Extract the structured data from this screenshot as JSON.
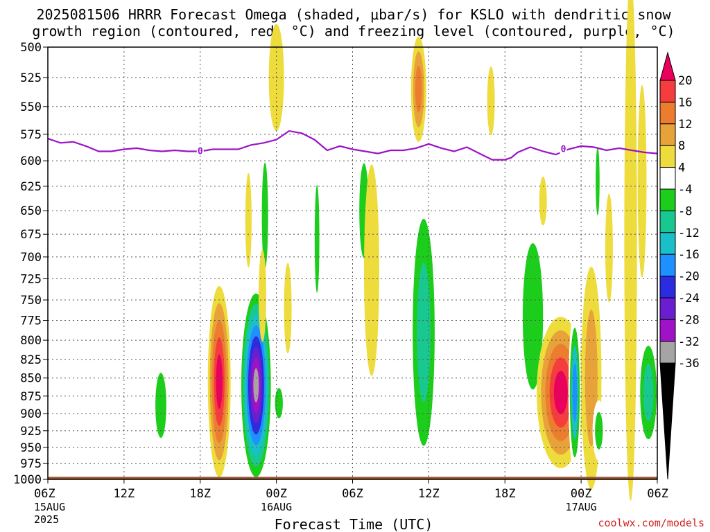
{
  "chart_data": {
    "type": "heatmap",
    "title_line1": "2025081506 HRRR Forecast Omega (shaded, μbar/s) for KSLO with dendritic snow",
    "title_line2": "growth region (contoured, red, °C) and freezing level (contoured, purple, °C)",
    "xlabel": "Forecast Time (UTC)",
    "x_ticks": [
      {
        "hour": 0,
        "label": "06Z",
        "date": "15AUG",
        "year": "2025"
      },
      {
        "hour": 6,
        "label": "12Z"
      },
      {
        "hour": 12,
        "label": "18Z"
      },
      {
        "hour": 18,
        "label": "00Z",
        "date": "16AUG"
      },
      {
        "hour": 24,
        "label": "06Z"
      },
      {
        "hour": 30,
        "label": "12Z"
      },
      {
        "hour": 36,
        "label": "18Z"
      },
      {
        "hour": 42,
        "label": "00Z",
        "date": "17AUG"
      },
      {
        "hour": 48,
        "label": "06Z"
      }
    ],
    "xlim": [
      0,
      48
    ],
    "ylim": [
      1000,
      500
    ],
    "y_ticks": [
      500,
      525,
      550,
      575,
      600,
      625,
      650,
      675,
      700,
      725,
      750,
      775,
      800,
      825,
      850,
      875,
      900,
      925,
      950,
      975,
      1000
    ],
    "grid": true,
    "colorbar": {
      "labels": [
        "20",
        "16",
        "12",
        "8",
        "4",
        "-4",
        "-8",
        "-12",
        "-16",
        "-20",
        "-24",
        "-28",
        "-32",
        "-36"
      ],
      "levels": [
        {
          "min": 20,
          "color": "#e8005c"
        },
        {
          "min": 16,
          "color": "#f53d3d"
        },
        {
          "min": 12,
          "color": "#ed7d2e"
        },
        {
          "min": 8,
          "color": "#e8a23a"
        },
        {
          "min": 4,
          "color": "#eddc3c"
        },
        {
          "min": -4,
          "color": "#ffffff"
        },
        {
          "min": -8,
          "color": "#1ccd1c"
        },
        {
          "min": -12,
          "color": "#19c890"
        },
        {
          "min": -16,
          "color": "#19bfc9"
        },
        {
          "min": -20,
          "color": "#1e90ff"
        },
        {
          "min": -24,
          "color": "#2b2bdf"
        },
        {
          "min": -28,
          "color": "#6a1ecf"
        },
        {
          "min": -32,
          "color": "#a012c8"
        },
        {
          "min": -36,
          "color": "#a5a5a5"
        },
        {
          "min": -999,
          "color": "#000000"
        }
      ]
    },
    "freezing_level": {
      "label": "0",
      "color": "#9a13c8",
      "points": [
        [
          0,
          579
        ],
        [
          1,
          583
        ],
        [
          2,
          582
        ],
        [
          3,
          586
        ],
        [
          4,
          591
        ],
        [
          5,
          591
        ],
        [
          6,
          589
        ],
        [
          7,
          588
        ],
        [
          8,
          590
        ],
        [
          9,
          591
        ],
        [
          10,
          590
        ],
        [
          11,
          591
        ],
        [
          12,
          591
        ],
        [
          13,
          589
        ],
        [
          14,
          589
        ],
        [
          15,
          589
        ],
        [
          16,
          585
        ],
        [
          17,
          583
        ],
        [
          18,
          580
        ],
        [
          19,
          572
        ],
        [
          20,
          574
        ],
        [
          21,
          580
        ],
        [
          22,
          590
        ],
        [
          23,
          586
        ],
        [
          24,
          589
        ],
        [
          25,
          591
        ],
        [
          26,
          593
        ],
        [
          27,
          590
        ],
        [
          28,
          590
        ],
        [
          29,
          588
        ],
        [
          30,
          584
        ],
        [
          31,
          588
        ],
        [
          32,
          591
        ],
        [
          33,
          587
        ],
        [
          34,
          593
        ],
        [
          35,
          599
        ],
        [
          36,
          599
        ],
        [
          36.5,
          597
        ],
        [
          37,
          592
        ],
        [
          38,
          587
        ],
        [
          39,
          591
        ],
        [
          40,
          594
        ],
        [
          41,
          589
        ],
        [
          42,
          586
        ],
        [
          43,
          587
        ],
        [
          44,
          590
        ],
        [
          45,
          588
        ],
        [
          46,
          590
        ],
        [
          47,
          592
        ],
        [
          48,
          593
        ]
      ]
    },
    "omega_features": [
      {
        "x": 8.9,
        "p": 888,
        "hw": 0.7,
        "hh": 75,
        "cores": [
          -4,
          -8
        ]
      },
      {
        "x": 13.5,
        "p": 855,
        "hw": 0.9,
        "hh": 130,
        "cores": [
          4,
          8,
          12,
          16,
          20
        ]
      },
      {
        "x": 16.4,
        "p": 860,
        "hw": 1.3,
        "hh": 140,
        "cores": [
          -4,
          -8,
          -12,
          -16,
          -20,
          -24,
          -28,
          -32,
          -36
        ]
      },
      {
        "x": 18.2,
        "p": 885,
        "hw": 0.5,
        "hh": 35,
        "cores": [
          -4,
          -8
        ]
      },
      {
        "x": 17.1,
        "p": 655,
        "hw": 0.4,
        "hh": 90,
        "cores": [
          -4,
          -8
        ]
      },
      {
        "x": 15.8,
        "p": 660,
        "hw": 0.25,
        "hh": 50,
        "cores": [
          4
        ]
      },
      {
        "x": 16.9,
        "p": 745,
        "hw": 0.3,
        "hh": 55,
        "cores": [
          4
        ]
      },
      {
        "x": 18.9,
        "p": 760,
        "hw": 0.3,
        "hh": 55,
        "cores": [
          4
        ]
      },
      {
        "x": 18.0,
        "p": 525,
        "hw": 0.6,
        "hh": 45,
        "cores": [
          4
        ]
      },
      {
        "x": 21.2,
        "p": 680,
        "hw": 0.3,
        "hh": 95,
        "cores": [
          -4,
          -8
        ]
      },
      {
        "x": 24.9,
        "p": 650,
        "hw": 0.6,
        "hh": 80,
        "cores": [
          -4,
          -8
        ]
      },
      {
        "x": 25.5,
        "p": 715,
        "hw": 0.6,
        "hh": 120,
        "cores": [
          4
        ]
      },
      {
        "x": 29.2,
        "p": 535,
        "hw": 0.6,
        "hh": 45,
        "cores": [
          4,
          8,
          12
        ]
      },
      {
        "x": 29.6,
        "p": 790,
        "hw": 1.2,
        "hh": 195,
        "cores": [
          -4,
          -8,
          -12
        ]
      },
      {
        "x": 38.2,
        "p": 770,
        "hw": 1.3,
        "hh": 145,
        "cores": [
          -4,
          -8
        ]
      },
      {
        "x": 40.4,
        "p": 870,
        "hw": 1.9,
        "hh": 105,
        "cores": [
          4,
          8,
          12,
          16,
          20
        ]
      },
      {
        "x": 41.5,
        "p": 870,
        "hw": 0.5,
        "hh": 115,
        "cores": [
          -4,
          -8,
          -16,
          -20
        ]
      },
      {
        "x": 42.8,
        "p": 850,
        "hw": 0.8,
        "hh": 150,
        "cores": [
          4,
          8
        ]
      },
      {
        "x": 43.3,
        "p": 620,
        "hw": 0.25,
        "hh": 55,
        "cores": [
          -4,
          -8
        ]
      },
      {
        "x": 43.4,
        "p": 925,
        "hw": 0.5,
        "hh": 45,
        "cores": [
          -4,
          -8
        ]
      },
      {
        "x": 44.2,
        "p": 690,
        "hw": 0.3,
        "hh": 60,
        "cores": [
          4
        ]
      },
      {
        "x": 45.9,
        "p": 680,
        "hw": 0.5,
        "hh": 270,
        "cores": [
          4
        ]
      },
      {
        "x": 47.3,
        "p": 870,
        "hw": 0.9,
        "hh": 90,
        "cores": [
          -4,
          -8,
          -12
        ]
      },
      {
        "x": 46.8,
        "p": 620,
        "hw": 0.35,
        "hh": 95,
        "cores": [
          4
        ]
      },
      {
        "x": 34.9,
        "p": 545,
        "hw": 0.3,
        "hh": 30,
        "cores": [
          4
        ]
      },
      {
        "x": 39.0,
        "p": 640,
        "hw": 0.3,
        "hh": 25,
        "cores": [
          4
        ]
      }
    ],
    "terrain": {
      "top_hpa": 996,
      "color": "#a0522d"
    },
    "credit": "coolwx.com/models"
  }
}
